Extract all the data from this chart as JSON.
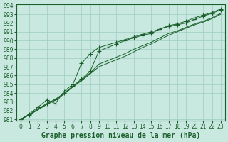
{
  "xlabel": "Graphe pression niveau de la mer (hPa)",
  "ylim": [
    981,
    994
  ],
  "xlim": [
    -0.5,
    23.5
  ],
  "yticks": [
    981,
    982,
    983,
    984,
    985,
    986,
    987,
    988,
    989,
    990,
    991,
    992,
    993,
    994
  ],
  "xticks": [
    0,
    1,
    2,
    3,
    4,
    5,
    6,
    7,
    8,
    9,
    10,
    11,
    12,
    13,
    14,
    15,
    16,
    17,
    18,
    19,
    20,
    21,
    22,
    23
  ],
  "bg_color": "#c8e8e0",
  "grid_color": "#9ecfbf",
  "line_color": "#1a5e2a",
  "line_upper": [
    981.0,
    981.5,
    982.2,
    982.8,
    983.3,
    984.0,
    984.8,
    985.6,
    986.5,
    988.8,
    989.2,
    989.6,
    990.0,
    990.3,
    990.6,
    990.8,
    991.3,
    991.7,
    991.9,
    992.2,
    992.6,
    992.9,
    993.2,
    993.6
  ],
  "line_mid1": [
    981.0,
    981.5,
    982.1,
    982.7,
    983.2,
    983.9,
    984.7,
    985.5,
    986.3,
    987.3,
    987.7,
    988.1,
    988.5,
    989.0,
    989.4,
    989.8,
    990.3,
    990.8,
    991.1,
    991.5,
    991.9,
    992.2,
    992.6,
    993.1
  ],
  "line_mid2": [
    981.0,
    981.5,
    982.1,
    982.7,
    983.2,
    983.9,
    984.7,
    985.4,
    986.2,
    987.0,
    987.4,
    987.8,
    988.2,
    988.7,
    989.2,
    989.6,
    990.1,
    990.6,
    991.0,
    991.4,
    991.8,
    992.1,
    992.5,
    993.0
  ],
  "line_marker": [
    981.0,
    981.6,
    982.4,
    983.2,
    982.8,
    984.2,
    985.0,
    987.4,
    988.5,
    989.2,
    989.5,
    989.8,
    990.1,
    990.4,
    990.7,
    991.0,
    991.3,
    991.6,
    991.8,
    992.0,
    992.4,
    992.8,
    993.1,
    993.5
  ],
  "marker_style": "+",
  "marker_size": 4,
  "linewidth": 0.7,
  "font_color": "#1a5e2a",
  "xlabel_fontsize": 7.0,
  "tick_fontsize": 5.5
}
